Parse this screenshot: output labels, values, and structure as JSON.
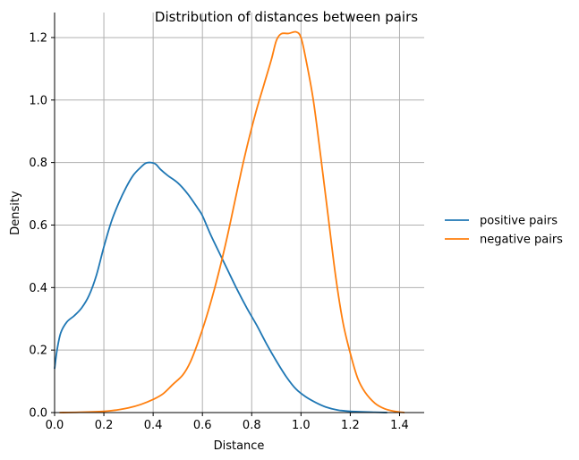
{
  "chart_data": {
    "type": "line",
    "title": "Distribution of distances between pairs",
    "xlabel": "Distance",
    "ylabel": "Density",
    "xlim": [
      0.0,
      1.5
    ],
    "ylim": [
      0.0,
      1.28
    ],
    "x_ticks": [
      "0.0",
      "0.2",
      "0.4",
      "0.6",
      "0.8",
      "1.0",
      "1.2",
      "1.4"
    ],
    "x_tick_values": [
      0.0,
      0.2,
      0.4,
      0.6,
      0.8,
      1.0,
      1.2,
      1.4
    ],
    "y_ticks": [
      "0.0",
      "0.2",
      "0.4",
      "0.6",
      "0.8",
      "1.0",
      "1.2"
    ],
    "y_tick_values": [
      0.0,
      0.2,
      0.4,
      0.6,
      0.8,
      1.0,
      1.2
    ],
    "grid": true,
    "legend_position": "right",
    "series": [
      {
        "name": "positive pairs",
        "color": "#1f77b4",
        "points": [
          [
            0.0,
            0.14
          ],
          [
            0.01,
            0.2
          ],
          [
            0.025,
            0.255
          ],
          [
            0.05,
            0.29
          ],
          [
            0.08,
            0.31
          ],
          [
            0.11,
            0.335
          ],
          [
            0.14,
            0.375
          ],
          [
            0.17,
            0.44
          ],
          [
            0.2,
            0.53
          ],
          [
            0.23,
            0.61
          ],
          [
            0.26,
            0.67
          ],
          [
            0.29,
            0.72
          ],
          [
            0.32,
            0.76
          ],
          [
            0.35,
            0.785
          ],
          [
            0.37,
            0.798
          ],
          [
            0.39,
            0.8
          ],
          [
            0.41,
            0.795
          ],
          [
            0.43,
            0.778
          ],
          [
            0.46,
            0.758
          ],
          [
            0.5,
            0.735
          ],
          [
            0.54,
            0.7
          ],
          [
            0.58,
            0.655
          ],
          [
            0.6,
            0.63
          ],
          [
            0.63,
            0.575
          ],
          [
            0.66,
            0.525
          ],
          [
            0.7,
            0.46
          ],
          [
            0.74,
            0.395
          ],
          [
            0.78,
            0.335
          ],
          [
            0.82,
            0.28
          ],
          [
            0.86,
            0.22
          ],
          [
            0.9,
            0.165
          ],
          [
            0.94,
            0.115
          ],
          [
            0.98,
            0.075
          ],
          [
            1.02,
            0.05
          ],
          [
            1.06,
            0.032
          ],
          [
            1.1,
            0.018
          ],
          [
            1.15,
            0.008
          ],
          [
            1.2,
            0.004
          ],
          [
            1.3,
            0.001
          ],
          [
            1.35,
            0.0
          ]
        ]
      },
      {
        "name": "negative pairs",
        "color": "#ff7f0e",
        "points": [
          [
            0.02,
            0.0
          ],
          [
            0.1,
            0.001
          ],
          [
            0.2,
            0.004
          ],
          [
            0.25,
            0.008
          ],
          [
            0.3,
            0.015
          ],
          [
            0.35,
            0.026
          ],
          [
            0.4,
            0.042
          ],
          [
            0.44,
            0.06
          ],
          [
            0.48,
            0.09
          ],
          [
            0.52,
            0.12
          ],
          [
            0.55,
            0.16
          ],
          [
            0.58,
            0.22
          ],
          [
            0.61,
            0.29
          ],
          [
            0.64,
            0.37
          ],
          [
            0.67,
            0.46
          ],
          [
            0.7,
            0.56
          ],
          [
            0.73,
            0.67
          ],
          [
            0.76,
            0.78
          ],
          [
            0.79,
            0.88
          ],
          [
            0.82,
            0.97
          ],
          [
            0.85,
            1.05
          ],
          [
            0.88,
            1.13
          ],
          [
            0.9,
            1.19
          ],
          [
            0.92,
            1.212
          ],
          [
            0.95,
            1.213
          ],
          [
            0.98,
            1.218
          ],
          [
            1.0,
            1.2
          ],
          [
            1.02,
            1.13
          ],
          [
            1.05,
            1.0
          ],
          [
            1.08,
            0.82
          ],
          [
            1.11,
            0.63
          ],
          [
            1.14,
            0.44
          ],
          [
            1.17,
            0.29
          ],
          [
            1.2,
            0.19
          ],
          [
            1.23,
            0.11
          ],
          [
            1.26,
            0.065
          ],
          [
            1.3,
            0.03
          ],
          [
            1.34,
            0.012
          ],
          [
            1.38,
            0.004
          ],
          [
            1.42,
            0.0
          ]
        ]
      }
    ]
  }
}
